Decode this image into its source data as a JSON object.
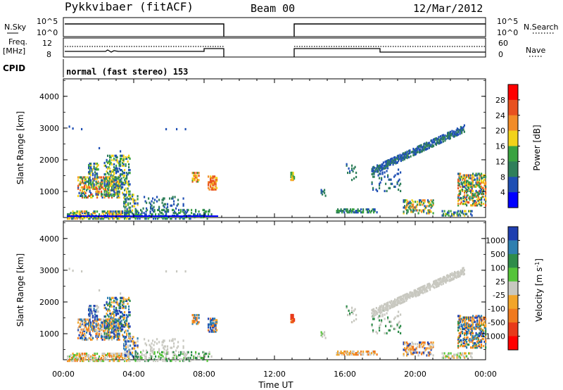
{
  "header": {
    "title": "Pykkvibaer (fitACF)",
    "beam": "Beam 00",
    "date": "12/Mar/2012"
  },
  "strip_labels": {
    "nsky": "N.Sky",
    "nsky_hi": "10^5",
    "nsky_lo": "10^0",
    "nsearch": "N.Search",
    "nsearch_hi": "10^5",
    "nsearch_lo": "10^0",
    "freq": "Freq.",
    "freq_unit": "[MHz]",
    "freq_hi": "12",
    "freq_lo": "8",
    "nave": "Nave",
    "nave_hi": "60",
    "nave_lo": "0",
    "cpid": "CPID",
    "mode": "normal (fast stereo) 153"
  },
  "chart_data": [
    {
      "type": "heatmap",
      "ylabel": "Slant Range [km]",
      "xlabel": "Time UT",
      "xticks": [
        "00:00",
        "04:00",
        "08:00",
        "12:00",
        "16:00",
        "20:00",
        "00:00"
      ],
      "yticks": [
        "1000",
        "2000",
        "3000",
        "4000"
      ],
      "ylim": [
        180,
        4550
      ],
      "xlim_hours": [
        0,
        24
      ],
      "colorbar": {
        "label": "Power [dB]",
        "ticks": [
          "4",
          "8",
          "12",
          "16",
          "20",
          "24",
          "28"
        ],
        "colors": [
          "#0000ff",
          "#1f4fb4",
          "#2f7f5a",
          "#3aa241",
          "#f2d21a",
          "#f28c28",
          "#e8511f",
          "#ff0000"
        ]
      }
    },
    {
      "type": "heatmap",
      "ylabel": "Slant Range [km]",
      "xlabel": "Time UT",
      "xticks": [
        "00:00",
        "04:00",
        "08:00",
        "12:00",
        "16:00",
        "20:00",
        "00:00"
      ],
      "yticks": [
        "1000",
        "2000",
        "3000",
        "4000"
      ],
      "ylim": [
        180,
        4550
      ],
      "xlim_hours": [
        0,
        24
      ],
      "colorbar": {
        "label": "Velocity [m s^-1]",
        "ticks": [
          "1000",
          "500",
          "100",
          "25",
          "-25",
          "-100",
          "-500",
          "-1000"
        ],
        "colors": [
          "#1f3fb0",
          "#2f7fb0",
          "#2f8c4a",
          "#55c43a",
          "#c8c8c0",
          "#f2a52a",
          "#f07a1f",
          "#e83a1a",
          "#ff0000"
        ]
      }
    }
  ]
}
